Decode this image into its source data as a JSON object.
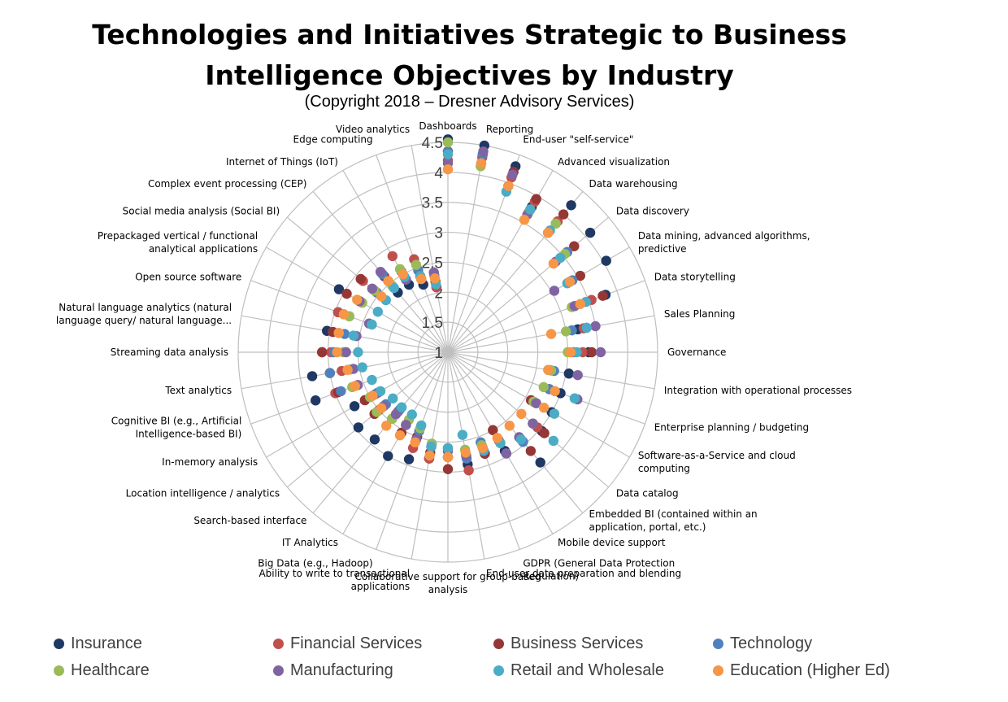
{
  "header": {
    "title_line1": "Technologies and Initiatives Strategic to Business",
    "title_line2": "Intelligence Objectives by Industry",
    "subtitle": "(Copyright 2018 – Dresner Advisory Services)"
  },
  "chart_data": {
    "type": "radar",
    "title": "Technologies and Initiatives Strategic to Business Intelligence Objectives by Industry",
    "subtitle": "(Copyright 2018 – Dresner Advisory Services)",
    "rlim": [
      1,
      4.5
    ],
    "ticks": [
      "1",
      "1.5",
      "2",
      "2.5",
      "3",
      "3.5",
      "4",
      "4.5"
    ],
    "grid": true,
    "legend_position": "bottom",
    "categories": [
      "Dashboards",
      "Reporting",
      "End-user \"self-service\"",
      "Advanced visualization",
      "Data warehousing",
      "Data discovery",
      "Data mining, advanced algorithms, predictive",
      "Data storytelling",
      "Sales Planning",
      "Governance",
      "Integration with operational processes",
      "Enterprise planning / budgeting",
      "Software-as-a-Service and cloud computing",
      "Data catalog",
      "Embedded BI (contained within an application, portal, etc.)",
      "Mobile device support",
      "GDPR (General Data Protection Regulation)",
      "End-user data preparation and blending",
      "Collaborative support for group-based analysis",
      "Ability to write to transactional applications",
      "Big Data (e.g., Hadoop)",
      "IT Analytics",
      "Search-based interface",
      "Location intelligence / analytics",
      "In-memory analysis",
      "Cognitive BI (e.g., Artificial Intelligence-based BI)",
      "Text analytics",
      "Streaming data analysis",
      "Natural language analytics (natural language query/ natural language...",
      "Open source software",
      "Prepackaged vertical / functional analytical applications",
      "Social media analysis (Social BI)",
      "Complex event processing (CEP)",
      "Internet of Things (IoT)",
      "Edge computing",
      "Video analytics"
    ],
    "series": [
      {
        "name": "Insurance",
        "color": "#1f3864",
        "values": [
          4.55,
          4.5,
          4.3,
          3.8,
          4.2,
          4.1,
          4.05,
          3.8,
          3.2,
          3.35,
          3.05,
          3.0,
          3.0,
          3.05,
          3.4,
          2.9,
          2.8,
          2.9,
          2.75,
          2.8,
          2.9,
          3.0,
          2.9,
          2.95,
          2.8,
          3.35,
          3.3,
          3.1,
          3.05,
          2.95,
          3.1,
          2.6,
          2.3,
          2.3,
          2.2,
          2.1
        ]
      },
      {
        "name": "Financial Services",
        "color": "#c0504d",
        "values": [
          4.2,
          4.3,
          4.1,
          3.9,
          3.85,
          3.6,
          3.35,
          3.55,
          3.3,
          3.25,
          2.75,
          2.8,
          2.65,
          2.95,
          2.95,
          2.7,
          2.6,
          3.0,
          2.75,
          2.8,
          2.7,
          2.4,
          2.3,
          2.5,
          2.6,
          3.0,
          2.8,
          2.95,
          2.95,
          2.95,
          2.7,
          2.85,
          2.55,
          2.85,
          2.65,
          2.1
        ]
      },
      {
        "name": "Business Services",
        "color": "#953735",
        "values": [
          4.35,
          4.35,
          4.2,
          3.95,
          4.0,
          3.75,
          3.55,
          3.75,
          3.35,
          3.4,
          2.75,
          2.9,
          2.6,
          3.1,
          3.15,
          2.5,
          2.8,
          2.75,
          2.95,
          2.7,
          2.5,
          2.55,
          2.45,
          2.6,
          2.6,
          2.95,
          3.0,
          3.1,
          2.95,
          2.85,
          2.95,
          2.9,
          2.65,
          2.4,
          2.3,
          2.2
        ]
      },
      {
        "name": "Technology",
        "color": "#4f81bd",
        "values": [
          4.35,
          4.35,
          3.95,
          3.75,
          3.8,
          3.6,
          3.4,
          3.25,
          3.1,
          3.1,
          2.8,
          2.8,
          2.7,
          2.85,
          2.95,
          2.95,
          2.6,
          2.8,
          2.6,
          2.55,
          2.4,
          2.4,
          2.25,
          2.35,
          2.4,
          2.9,
          3.0,
          2.9,
          2.75,
          2.75,
          2.7,
          2.55,
          2.7,
          2.55,
          2.45,
          2.3
        ]
      },
      {
        "name": "Healthcare",
        "color": "#9bbb59",
        "values": [
          4.5,
          4.15,
          3.95,
          3.7,
          3.8,
          3.55,
          3.35,
          3.2,
          3.0,
          3.0,
          2.75,
          2.7,
          2.65,
          2.85,
          2.85,
          2.75,
          2.65,
          2.65,
          2.6,
          2.55,
          2.35,
          2.3,
          2.45,
          2.55,
          2.5,
          2.7,
          2.65,
          2.75,
          2.85,
          2.75,
          2.65,
          2.6,
          2.45,
          2.6,
          2.55,
          2.35
        ]
      },
      {
        "name": "Manufacturing",
        "color": "#8064a2",
        "values": [
          4.15,
          4.4,
          4.15,
          3.65,
          3.6,
          3.35,
          3.05,
          3.25,
          3.5,
          3.55,
          3.2,
          3.3,
          2.7,
          2.85,
          2.85,
          2.95,
          2.7,
          2.75,
          2.65,
          2.6,
          2.55,
          2.4,
          2.35,
          2.4,
          2.35,
          2.6,
          2.6,
          2.7,
          2.55,
          2.4,
          2.7,
          2.65,
          2.75,
          2.4,
          2.35,
          2.35
        ]
      },
      {
        "name": "Retail and Wholesale",
        "color": "#4bacc6",
        "values": [
          4.3,
          4.2,
          3.85,
          3.75,
          3.65,
          3.45,
          3.3,
          3.45,
          3.35,
          3.15,
          2.7,
          3.25,
          3.05,
          3.3,
          2.9,
          2.75,
          2.75,
          2.4,
          2.6,
          2.6,
          2.3,
          2.2,
          2.2,
          2.2,
          2.3,
          2.35,
          2.45,
          2.5,
          2.6,
          2.35,
          2.35,
          2.35,
          2.4,
          2.45,
          2.35,
          2.15
        ]
      },
      {
        "name": "Education (Higher Ed)",
        "color": "#f79646",
        "values": [
          4.05,
          4.2,
          3.95,
          3.55,
          3.6,
          3.3,
          3.35,
          3.35,
          2.75,
          3.05,
          2.7,
          2.9,
          2.85,
          2.6,
          2.6,
          2.65,
          2.7,
          2.7,
          2.75,
          2.75,
          2.6,
          2.6,
          2.6,
          2.45,
          2.45,
          2.65,
          2.7,
          2.85,
          2.85,
          2.85,
          2.75,
          2.45,
          2.55,
          2.5,
          2.3,
          2.25
        ]
      }
    ]
  }
}
